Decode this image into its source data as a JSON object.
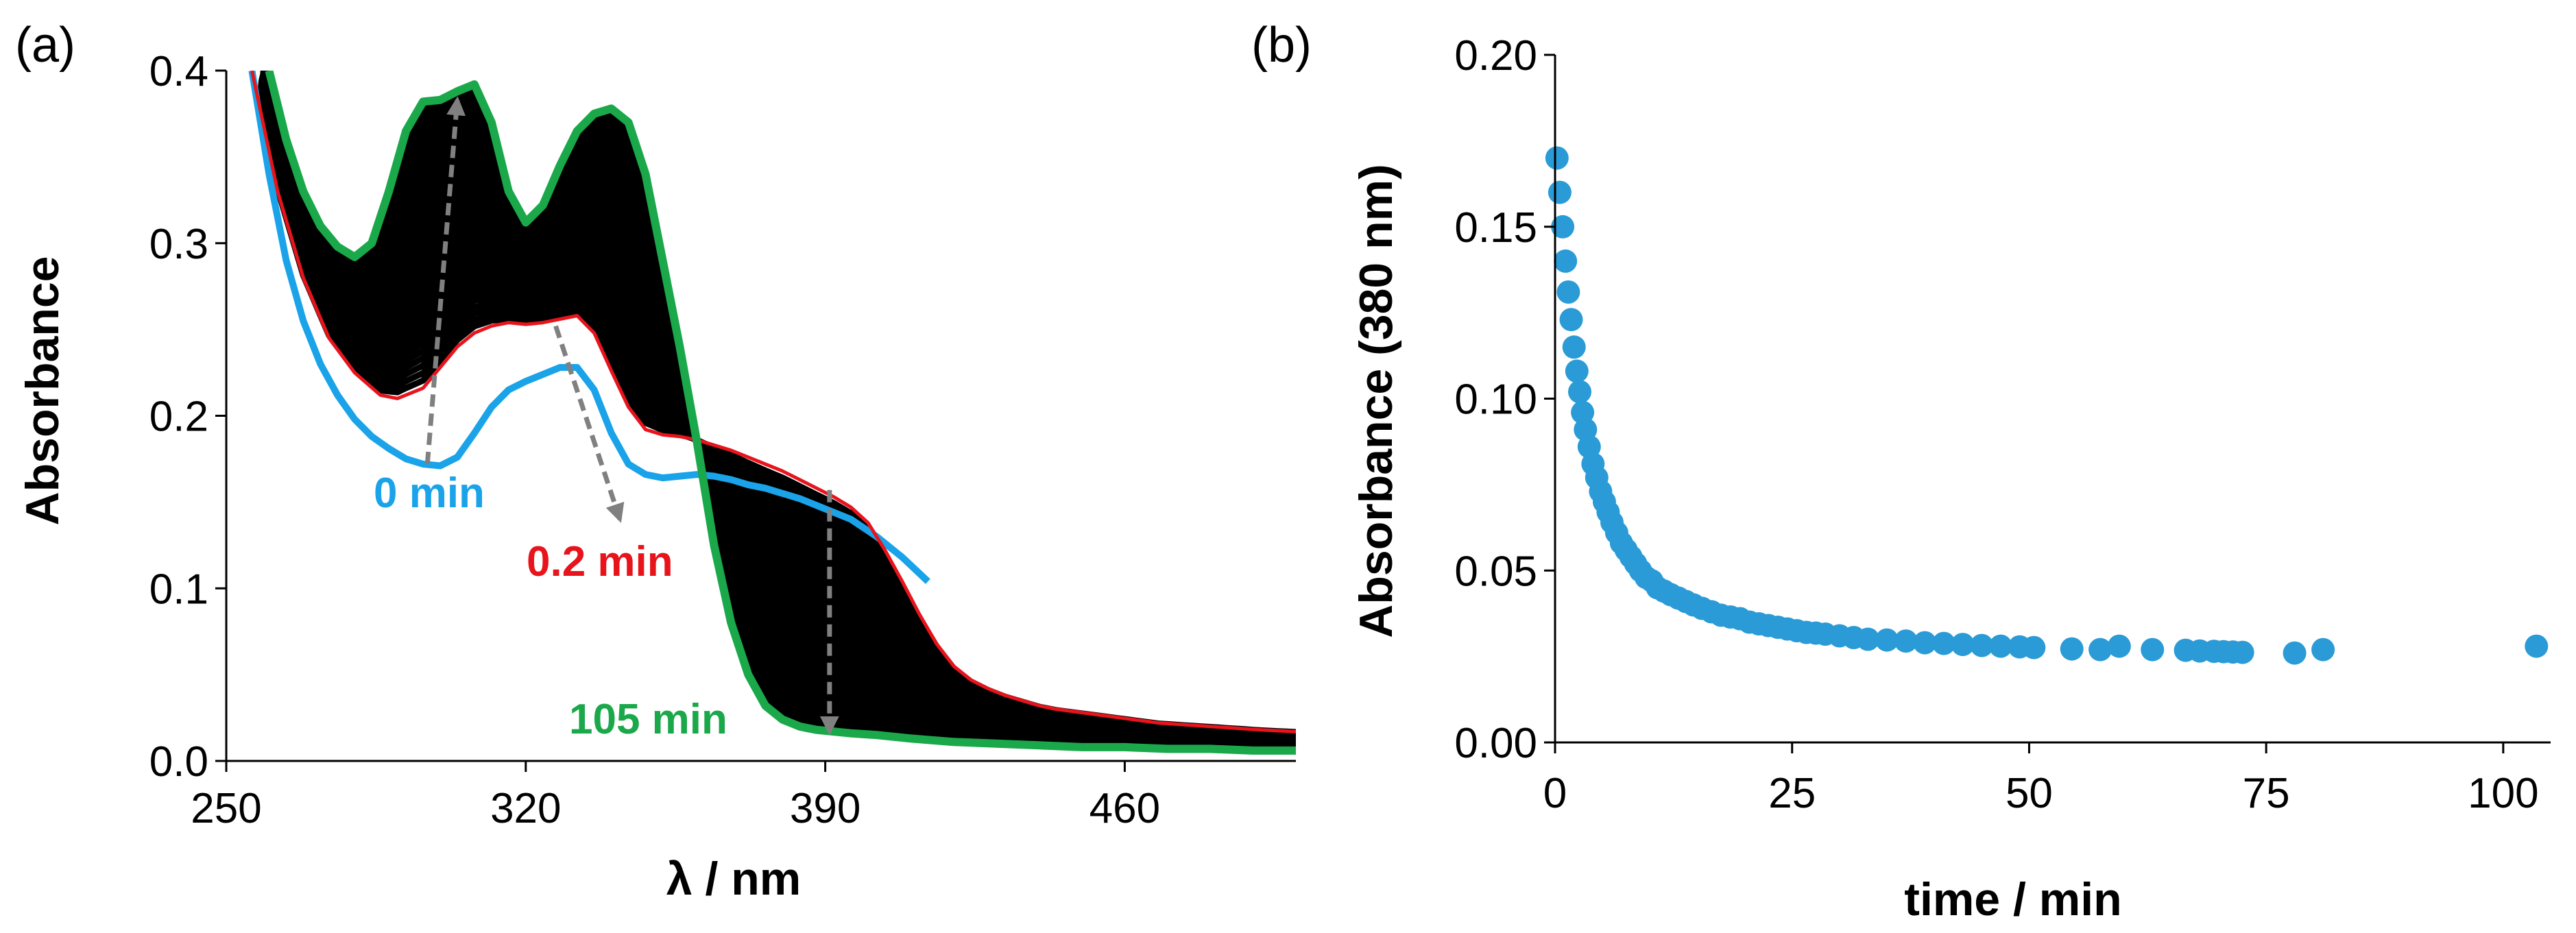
{
  "chart_data": [
    {
      "panel": "(a)",
      "type": "line",
      "xlabel": "λ / nm",
      "ylabel": "Absorbance",
      "xlim": [
        250,
        500
      ],
      "ylim": [
        0.0,
        0.4
      ],
      "xticks": [
        250,
        320,
        390,
        460
      ],
      "yticks": [
        0.0,
        0.1,
        0.2,
        0.3,
        0.4
      ],
      "ytick_labels": [
        "0.0",
        "0.1",
        "0.2",
        "0.3",
        "0.4"
      ],
      "colors": {
        "t0": "#1aa3e8",
        "t02": "#e8141c",
        "t105": "#1aa84a",
        "intermediate": "#000000",
        "arrow": "#808080"
      },
      "series": [
        {
          "name": "0 min",
          "label": "0 min",
          "color": "#1aa3e8",
          "x": [
            256,
            260,
            264,
            268,
            272,
            276,
            280,
            284,
            288,
            292,
            296,
            300,
            304,
            308,
            312,
            316,
            320,
            324,
            328,
            332,
            336,
            340,
            344,
            348,
            352,
            356,
            360,
            364,
            368,
            372,
            376,
            380,
            384,
            390,
            396,
            402,
            408,
            414
          ],
          "y": [
            0.4,
            0.34,
            0.29,
            0.255,
            0.23,
            0.212,
            0.198,
            0.188,
            0.181,
            0.175,
            0.172,
            0.171,
            0.176,
            0.19,
            0.205,
            0.215,
            0.22,
            0.224,
            0.228,
            0.228,
            0.215,
            0.19,
            0.172,
            0.166,
            0.164,
            0.165,
            0.166,
            0.165,
            0.163,
            0.16,
            0.158,
            0.155,
            0.152,
            0.146,
            0.14,
            0.13,
            0.118,
            0.104
          ]
        },
        {
          "name": "0.2 min",
          "label": "0.2 min",
          "color": "#e8141c",
          "x": [
            256,
            262,
            268,
            274,
            280,
            286,
            290,
            296,
            300,
            304,
            308,
            312,
            316,
            320,
            324,
            328,
            332,
            336,
            340,
            344,
            348,
            352,
            356,
            360,
            364,
            368,
            372,
            376,
            380,
            384,
            388,
            392,
            396,
            400,
            404,
            408,
            412,
            416,
            420,
            424,
            428,
            432,
            436,
            440,
            444,
            450,
            456,
            462,
            468,
            474,
            480,
            486,
            492,
            500
          ],
          "y": [
            0.4,
            0.33,
            0.28,
            0.245,
            0.225,
            0.212,
            0.21,
            0.216,
            0.228,
            0.24,
            0.248,
            0.252,
            0.254,
            0.253,
            0.254,
            0.256,
            0.258,
            0.248,
            0.226,
            0.205,
            0.192,
            0.189,
            0.188,
            0.186,
            0.183,
            0.18,
            0.176,
            0.172,
            0.168,
            0.163,
            0.158,
            0.153,
            0.147,
            0.138,
            0.122,
            0.104,
            0.085,
            0.068,
            0.055,
            0.047,
            0.042,
            0.038,
            0.035,
            0.032,
            0.03,
            0.028,
            0.026,
            0.024,
            0.022,
            0.021,
            0.02,
            0.019,
            0.018,
            0.017
          ]
        },
        {
          "name": "105 min",
          "label": "105 min",
          "color": "#1aa84a",
          "x": [
            260,
            264,
            268,
            272,
            276,
            280,
            284,
            288,
            292,
            296,
            300,
            304,
            308,
            312,
            316,
            320,
            324,
            328,
            332,
            336,
            340,
            344,
            348,
            352,
            356,
            360,
            364,
            368,
            372,
            376,
            380,
            384,
            388,
            392,
            396,
            402,
            410,
            420,
            430,
            440,
            450,
            460,
            470,
            480,
            490,
            500
          ],
          "y": [
            0.4,
            0.36,
            0.33,
            0.31,
            0.298,
            0.292,
            0.3,
            0.33,
            0.365,
            0.382,
            0.383,
            0.388,
            0.392,
            0.37,
            0.33,
            0.312,
            0.322,
            0.345,
            0.365,
            0.375,
            0.378,
            0.37,
            0.34,
            0.29,
            0.24,
            0.185,
            0.125,
            0.08,
            0.05,
            0.032,
            0.024,
            0.02,
            0.018,
            0.017,
            0.016,
            0.015,
            0.013,
            0.011,
            0.01,
            0.009,
            0.008,
            0.008,
            0.007,
            0.007,
            0.006,
            0.006
          ]
        }
      ],
      "annotations": [
        {
          "type": "arrow",
          "from": [
            297,
            0.172
          ],
          "to": [
            304,
            0.383
          ]
        },
        {
          "type": "arrow",
          "from": [
            327,
            0.252
          ],
          "to": [
            342,
            0.14
          ]
        },
        {
          "type": "arrow",
          "from": [
            391,
            0.157
          ],
          "to": [
            391,
            0.017
          ]
        }
      ]
    },
    {
      "panel": "(b)",
      "type": "scatter",
      "xlabel": "time / min",
      "ylabel": "Absorbance (380 nm)",
      "xlim": [
        0,
        105
      ],
      "ylim": [
        0.0,
        0.2
      ],
      "xticks": [
        0,
        25,
        50,
        75,
        100
      ],
      "yticks": [
        0.0,
        0.05,
        0.1,
        0.15,
        0.2
      ],
      "ytick_labels": [
        "0.00",
        "0.05",
        "0.10",
        "0.15",
        "0.20"
      ],
      "color": "#2a9bd6",
      "x": [
        0.2,
        0.5,
        0.8,
        1.1,
        1.4,
        1.7,
        2.0,
        2.3,
        2.6,
        2.9,
        3.2,
        3.6,
        4.0,
        4.4,
        4.8,
        5.2,
        5.6,
        6.0,
        6.5,
        7.0,
        7.5,
        8.0,
        8.5,
        9.0,
        9.6,
        10.2,
        10.8,
        11.5,
        12.2,
        13.0,
        13.8,
        14.6,
        15.5,
        16.5,
        17.5,
        18.5,
        19.5,
        20.5,
        21.5,
        22.5,
        23.5,
        24.5,
        25.5,
        26.5,
        27.5,
        28.5,
        30,
        31.5,
        33,
        35,
        37,
        39,
        41,
        43,
        45,
        47,
        49,
        50.5,
        54.5,
        57.5,
        59.5,
        63,
        66.5,
        68,
        69.5,
        70.5,
        71.5,
        72.5,
        78,
        81,
        103.5
      ],
      "y": [
        0.17,
        0.16,
        0.15,
        0.14,
        0.131,
        0.123,
        0.115,
        0.108,
        0.102,
        0.096,
        0.091,
        0.086,
        0.081,
        0.077,
        0.073,
        0.07,
        0.067,
        0.064,
        0.061,
        0.058,
        0.056,
        0.054,
        0.052,
        0.05,
        0.048,
        0.047,
        0.045,
        0.044,
        0.043,
        0.042,
        0.041,
        0.04,
        0.039,
        0.038,
        0.037,
        0.0365,
        0.036,
        0.035,
        0.0345,
        0.034,
        0.0335,
        0.033,
        0.0325,
        0.032,
        0.0318,
        0.0315,
        0.031,
        0.0305,
        0.03,
        0.0298,
        0.0295,
        0.029,
        0.0288,
        0.0285,
        0.0282,
        0.028,
        0.0278,
        0.0276,
        0.0272,
        0.027,
        0.028,
        0.027,
        0.0268,
        0.0266,
        0.0265,
        0.0264,
        0.0263,
        0.0262,
        0.026,
        0.027,
        0.028
      ]
    }
  ]
}
